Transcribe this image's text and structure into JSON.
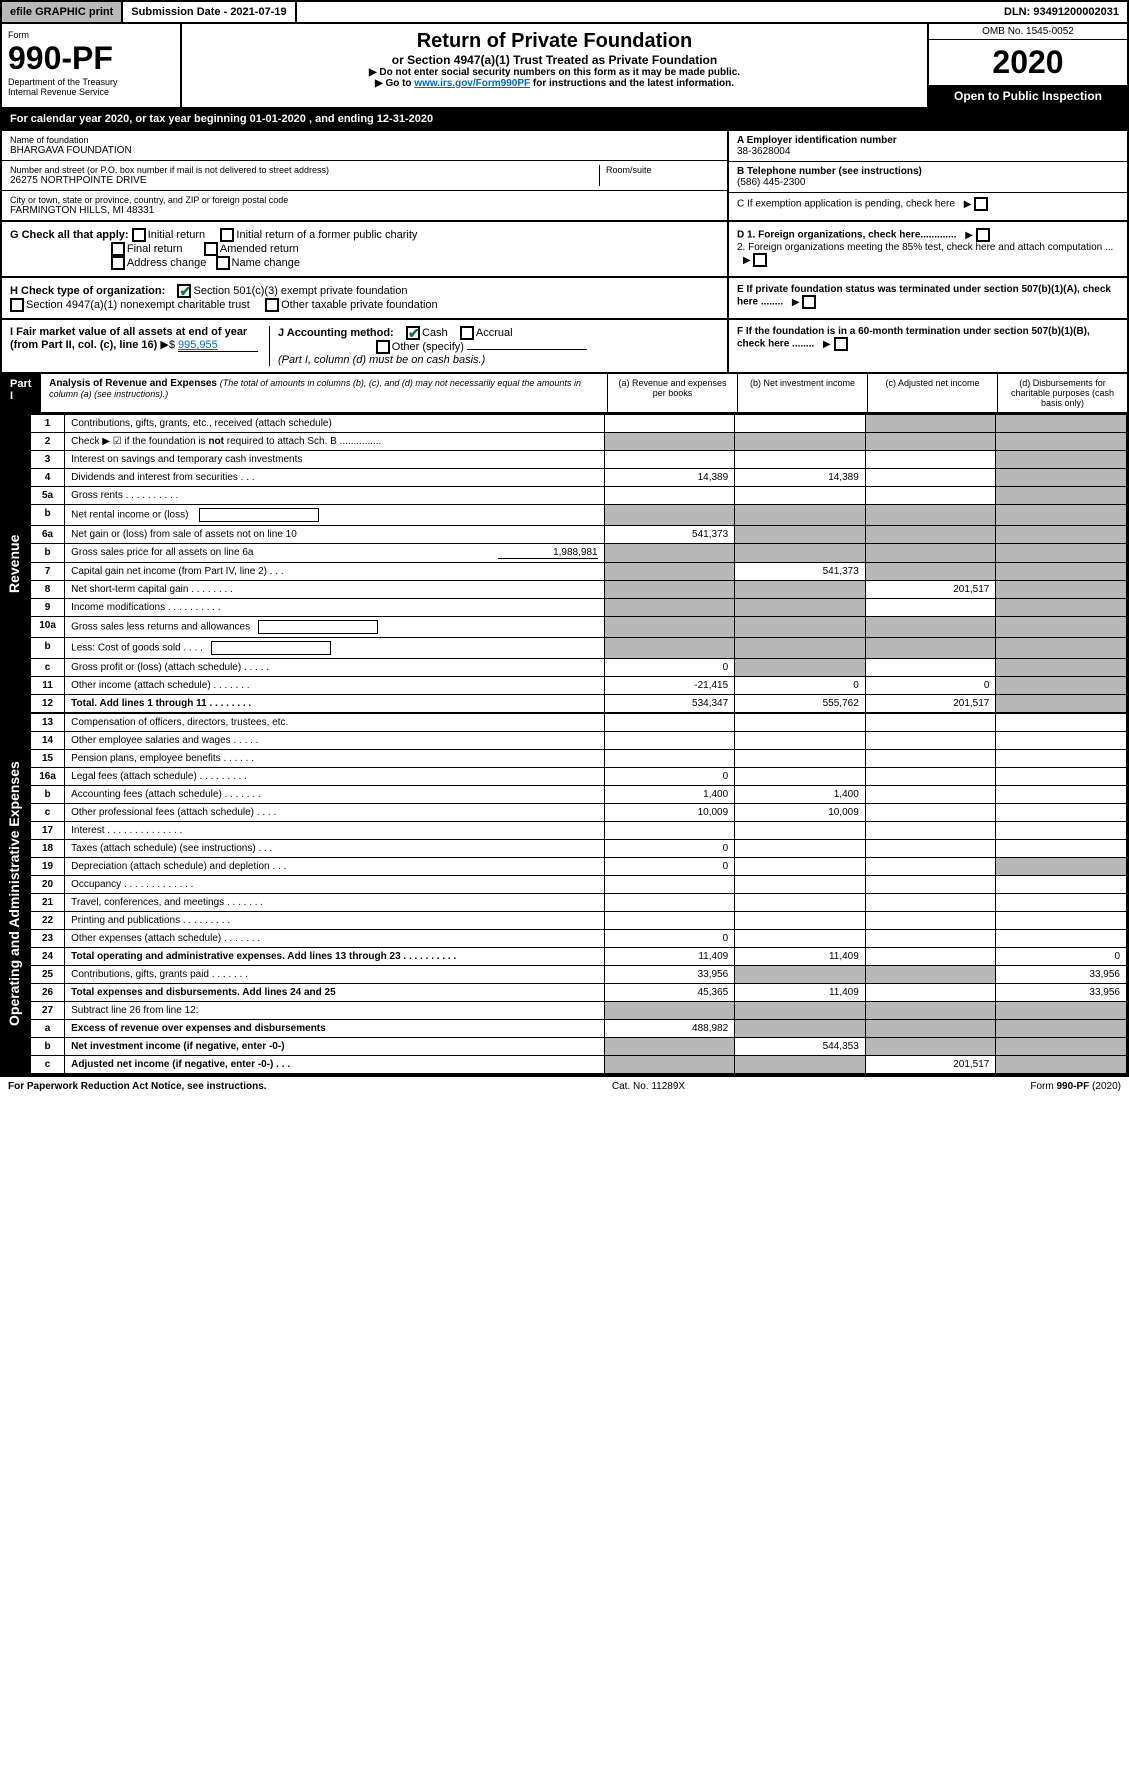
{
  "top": {
    "efile": "efile GRAPHIC print",
    "subdate_label": "Submission Date - 2021-07-19",
    "dln": "DLN: 93491200002031"
  },
  "header": {
    "form_word": "Form",
    "form_num": "990-PF",
    "dept": "Department of the Treasury",
    "irs": "Internal Revenue Service",
    "title": "Return of Private Foundation",
    "subtitle": "or Section 4947(a)(1) Trust Treated as Private Foundation",
    "note1": "▶ Do not enter social security numbers on this form as it may be made public.",
    "note2_pre": "▶ Go to ",
    "note2_link": "www.irs.gov/Form990PF",
    "note2_post": " for instructions and the latest information.",
    "omb": "OMB No. 1545-0052",
    "year": "2020",
    "open": "Open to Public Inspection"
  },
  "calyear": "For calendar year 2020, or tax year beginning 01-01-2020                                    , and ending 12-31-2020",
  "info": {
    "name_label": "Name of foundation",
    "name": "BHARGAVA FOUNDATION",
    "addr_label": "Number and street (or P.O. box number if mail is not delivered to street address)",
    "addr": "26275 NORTHPOINTE DRIVE",
    "room_label": "Room/suite",
    "city_label": "City or town, state or province, country, and ZIP or foreign postal code",
    "city": "FARMINGTON HILLS, MI  48331",
    "ein_label": "A Employer identification number",
    "ein": "38-3628004",
    "phone_label": "B Telephone number (see instructions)",
    "phone": "(586) 445-2300",
    "c_label": "C  If exemption application is pending, check here",
    "d1": "D 1. Foreign organizations, check here.............",
    "d2": "2. Foreign organizations meeting the 85% test, check here and attach computation ...",
    "e": "E  If private foundation status was terminated under section 507(b)(1)(A), check here ........",
    "f": "F  If the foundation is in a 60-month termination under section 507(b)(1)(B), check here ........"
  },
  "g": {
    "label": "G Check all that apply:",
    "opts": [
      "Initial return",
      "Initial return of a former public charity",
      "Final return",
      "Amended return",
      "Address change",
      "Name change"
    ]
  },
  "h": {
    "label": "H Check type of organization:",
    "opt1": "Section 501(c)(3) exempt private foundation",
    "opt2": "Section 4947(a)(1) nonexempt charitable trust",
    "opt3": "Other taxable private foundation"
  },
  "i": {
    "label": "I Fair market value of all assets at end of year (from Part II, col. (c), line 16)",
    "arrow": "▶$",
    "value": "995,955"
  },
  "j": {
    "label": "J Accounting method:",
    "cash": "Cash",
    "accrual": "Accrual",
    "other": "Other (specify)",
    "note": "(Part I, column (d) must be on cash basis.)"
  },
  "part1": {
    "badge": "Part I",
    "title": "Analysis of Revenue and Expenses",
    "subtitle": "(The total of amounts in columns (b), (c), and (d) may not necessarily equal the amounts in column (a) (see instructions).)",
    "col_a": "(a)    Revenue and expenses per books",
    "col_b": "(b)   Net investment income",
    "col_c": "(c)   Adjusted net income",
    "col_d": "(d)   Disbursements for charitable purposes (cash basis only)"
  },
  "sections": {
    "revenue": "Revenue",
    "expenses": "Operating and Administrative Expenses"
  },
  "rows": [
    {
      "n": "1",
      "d": "Contributions, gifts, grants, etc., received (attach schedule)",
      "a": "",
      "b": "",
      "c": "s",
      "dd": "s"
    },
    {
      "n": "2",
      "d": "Check ▶ ☑ if the foundation is not required to attach Sch. B",
      "dots": "...............",
      "a": "s",
      "b": "s",
      "c": "s",
      "dd": "s",
      "bold_words": [
        "not"
      ]
    },
    {
      "n": "3",
      "d": "Interest on savings and temporary cash investments",
      "a": "",
      "b": "",
      "c": "",
      "dd": "s"
    },
    {
      "n": "4",
      "d": "Dividends and interest from securities    .   .   .",
      "a": "14,389",
      "b": "14,389",
      "c": "",
      "dd": "s"
    },
    {
      "n": "5a",
      "d": "Gross rents      .   .   .   .   .   .   .   .   .   .",
      "a": "",
      "b": "",
      "c": "",
      "dd": "s"
    },
    {
      "n": "b",
      "d": "Net rental income or (loss)  ",
      "a": "s",
      "b": "s",
      "c": "s",
      "dd": "s",
      "has_box": true
    },
    {
      "n": "6a",
      "d": "Net gain or (loss) from sale of assets not on line 10",
      "a": "541,373",
      "b": "s",
      "c": "s",
      "dd": "s"
    },
    {
      "n": "b",
      "d": "Gross sales price for all assets on line 6a ",
      "a": "s",
      "b": "s",
      "c": "s",
      "dd": "s",
      "inline_val": "1,988,981"
    },
    {
      "n": "7",
      "d": "Capital gain net income (from Part IV, line 2)    .   .   .",
      "a": "s",
      "b": "541,373",
      "c": "s",
      "dd": "s"
    },
    {
      "n": "8",
      "d": "Net short-term capital gain    .   .   .   .   .   .   .   .",
      "a": "s",
      "b": "s",
      "c": "201,517",
      "dd": "s"
    },
    {
      "n": "9",
      "d": "Income modifications   .   .   .   .   .   .   .   .   .   .",
      "a": "s",
      "b": "s",
      "c": "",
      "dd": "s"
    },
    {
      "n": "10a",
      "d": "Gross sales less returns and allowances",
      "a": "s",
      "b": "s",
      "c": "s",
      "dd": "s",
      "has_box": true
    },
    {
      "n": "b",
      "d": "Less: Cost of goods sold      .   .   .   .",
      "a": "s",
      "b": "s",
      "c": "s",
      "dd": "s",
      "has_box": true
    },
    {
      "n": "c",
      "d": "Gross profit or (loss) (attach schedule)     .   .   .   .   .",
      "a": "0",
      "b": "s",
      "c": "",
      "dd": "s"
    },
    {
      "n": "11",
      "d": "Other income (attach schedule)     .   .   .   .   .   .   .",
      "a": "-21,415",
      "b": "0",
      "c": "0",
      "dd": "s"
    },
    {
      "n": "12",
      "d": "Total. Add lines 1 through 11     .   .   .   .   .   .   .   .",
      "a": "534,347",
      "b": "555,762",
      "c": "201,517",
      "dd": "s",
      "bold": true
    }
  ],
  "exp_rows": [
    {
      "n": "13",
      "d": "Compensation of officers, directors, trustees, etc.",
      "a": "",
      "b": "",
      "c": "",
      "dd": ""
    },
    {
      "n": "14",
      "d": "Other employee salaries and wages     .   .   .   .   .",
      "a": "",
      "b": "",
      "c": "",
      "dd": ""
    },
    {
      "n": "15",
      "d": "Pension plans, employee benefits    .   .   .   .   .   .",
      "a": "",
      "b": "",
      "c": "",
      "dd": ""
    },
    {
      "n": "16a",
      "d": "Legal fees (attach schedule)   .   .   .   .   .   .   .   .   .",
      "a": "0",
      "b": "",
      "c": "",
      "dd": ""
    },
    {
      "n": "b",
      "d": "Accounting fees (attach schedule)    .   .   .   .   .   .   .",
      "a": "1,400",
      "b": "1,400",
      "c": "",
      "dd": ""
    },
    {
      "n": "c",
      "d": "Other professional fees (attach schedule)     .   .   .   .",
      "a": "10,009",
      "b": "10,009",
      "c": "",
      "dd": ""
    },
    {
      "n": "17",
      "d": "Interest    .   .   .   .   .   .   .   .   .   .   .   .   .   .",
      "a": "",
      "b": "",
      "c": "",
      "dd": ""
    },
    {
      "n": "18",
      "d": "Taxes (attach schedule) (see instructions)      .   .   .",
      "a": "0",
      "b": "",
      "c": "",
      "dd": ""
    },
    {
      "n": "19",
      "d": "Depreciation (attach schedule) and depletion     .   .   .",
      "a": "0",
      "b": "",
      "c": "",
      "dd": "s"
    },
    {
      "n": "20",
      "d": "Occupancy   .   .   .   .   .   .   .   .   .   .   .   .   .",
      "a": "",
      "b": "",
      "c": "",
      "dd": ""
    },
    {
      "n": "21",
      "d": "Travel, conferences, and meetings   .   .   .   .   .   .   .",
      "a": "",
      "b": "",
      "c": "",
      "dd": ""
    },
    {
      "n": "22",
      "d": "Printing and publications   .   .   .   .   .   .   .   .   .",
      "a": "",
      "b": "",
      "c": "",
      "dd": ""
    },
    {
      "n": "23",
      "d": "Other expenses (attach schedule)    .   .   .   .   .   .   .",
      "a": "0",
      "b": "",
      "c": "",
      "dd": ""
    },
    {
      "n": "24",
      "d": "Total operating and administrative expenses. Add lines 13 through 23    .   .   .   .   .   .   .   .   .   .",
      "a": "11,409",
      "b": "11,409",
      "c": "",
      "dd": "0",
      "bold": true
    },
    {
      "n": "25",
      "d": "Contributions, gifts, grants paid       .   .   .   .   .   .   .",
      "a": "33,956",
      "b": "s",
      "c": "s",
      "dd": "33,956"
    },
    {
      "n": "26",
      "d": "Total expenses and disbursements. Add lines 24 and 25",
      "a": "45,365",
      "b": "11,409",
      "c": "",
      "dd": "33,956",
      "bold": true
    },
    {
      "n": "27",
      "d": "Subtract line 26 from line 12:",
      "a": "s",
      "b": "s",
      "c": "s",
      "dd": "s"
    },
    {
      "n": "a",
      "d": "Excess of revenue over expenses and disbursements",
      "a": "488,982",
      "b": "s",
      "c": "s",
      "dd": "s",
      "bold": true
    },
    {
      "n": "b",
      "d": "Net investment income (if negative, enter -0-)",
      "a": "s",
      "b": "544,353",
      "c": "s",
      "dd": "s",
      "bold": true
    },
    {
      "n": "c",
      "d": "Adjusted net income (if negative, enter -0-)    .   .   .",
      "a": "s",
      "b": "s",
      "c": "201,517",
      "dd": "s",
      "bold": true
    }
  ],
  "footer": {
    "left": "For Paperwork Reduction Act Notice, see instructions.",
    "mid": "Cat. No. 11289X",
    "right": "Form 990-PF (2020)"
  },
  "colors": {
    "shaded": "#b8b8b8",
    "black": "#000000",
    "check_green": "#0a7a3a",
    "link": "#0066cc"
  }
}
